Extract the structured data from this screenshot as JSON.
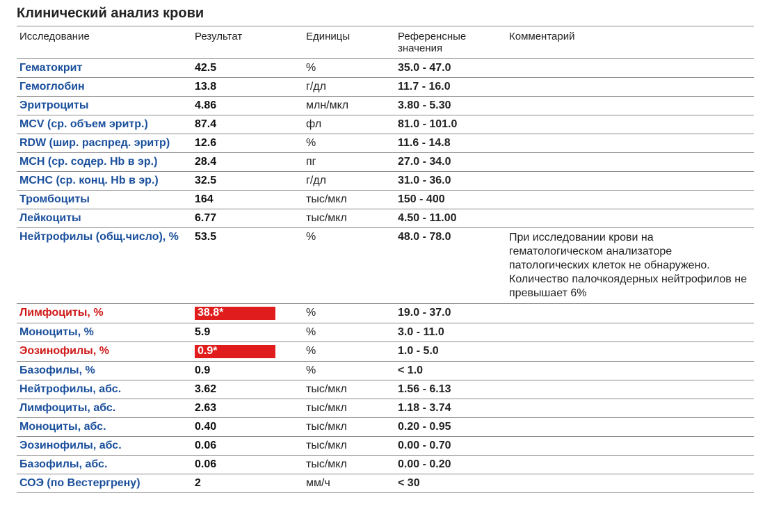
{
  "title": "Клинический анализ крови",
  "columns": [
    "Исследование",
    "Результат",
    "Единицы",
    "Референсные значения",
    "Комментарий"
  ],
  "rows": [
    {
      "name": "Гематокрит",
      "result": "42.5",
      "unit": "%",
      "ref": "35.0 - 47.0",
      "abnormal": false,
      "comment": ""
    },
    {
      "name": "Гемоглобин",
      "result": "13.8",
      "unit": "г/дл",
      "ref": "11.7 - 16.0",
      "abnormal": false,
      "comment": ""
    },
    {
      "name": "Эритроциты",
      "result": "4.86",
      "unit": "млн/мкл",
      "ref": "3.80 - 5.30",
      "abnormal": false,
      "comment": ""
    },
    {
      "name": "MCV (ср. объем эритр.)",
      "result": "87.4",
      "unit": "фл",
      "ref": "81.0 - 101.0",
      "abnormal": false,
      "comment": ""
    },
    {
      "name": "RDW (шир. распред. эритр)",
      "result": "12.6",
      "unit": "%",
      "ref": "11.6 - 14.8",
      "abnormal": false,
      "comment": ""
    },
    {
      "name": "MCH (ср. содер. Hb в эр.)",
      "result": "28.4",
      "unit": "пг",
      "ref": "27.0 - 34.0",
      "abnormal": false,
      "comment": ""
    },
    {
      "name": "MCHC (ср. конц. Hb в эр.)",
      "result": "32.5",
      "unit": "г/дл",
      "ref": "31.0 - 36.0",
      "abnormal": false,
      "comment": ""
    },
    {
      "name": "Тромбоциты",
      "result": "164",
      "unit": "тыс/мкл",
      "ref": "150 - 400",
      "abnormal": false,
      "comment": ""
    },
    {
      "name": "Лейкоциты",
      "result": "6.77",
      "unit": "тыс/мкл",
      "ref": "4.50 - 11.00",
      "abnormal": false,
      "comment": ""
    },
    {
      "name": "Нейтрофилы (общ.число), %",
      "result": "53.5",
      "unit": "%",
      "ref": "48.0 - 78.0",
      "abnormal": false,
      "comment": "При исследовании крови на гематологическом анализаторе патологических клеток не обнаружено. Количество палочкоядерных нейтрофилов не превышает 6%"
    },
    {
      "name": "Лимфоциты, %",
      "result": "38.8*",
      "unit": "%",
      "ref": "19.0 - 37.0",
      "abnormal": true,
      "comment": ""
    },
    {
      "name": "Моноциты, %",
      "result": "5.9",
      "unit": "%",
      "ref": "3.0 - 11.0",
      "abnormal": false,
      "comment": ""
    },
    {
      "name": "Эозинофилы, %",
      "result": "0.9*",
      "unit": "%",
      "ref": "1.0 - 5.0",
      "abnormal": true,
      "comment": ""
    },
    {
      "name": "Базофилы, %",
      "result": "0.9",
      "unit": "%",
      "ref": "< 1.0",
      "abnormal": false,
      "comment": ""
    },
    {
      "name": "Нейтрофилы, абс.",
      "result": "3.62",
      "unit": "тыс/мкл",
      "ref": "1.56 - 6.13",
      "abnormal": false,
      "comment": ""
    },
    {
      "name": "Лимфоциты, абс.",
      "result": "2.63",
      "unit": "тыс/мкл",
      "ref": "1.18 - 3.74",
      "abnormal": false,
      "comment": ""
    },
    {
      "name": "Моноциты, абс.",
      "result": "0.40",
      "unit": "тыс/мкл",
      "ref": "0.20 - 0.95",
      "abnormal": false,
      "comment": ""
    },
    {
      "name": "Эозинофилы, абс.",
      "result": "0.06",
      "unit": "тыс/мкл",
      "ref": "0.00 - 0.70",
      "abnormal": false,
      "comment": ""
    },
    {
      "name": "Базофилы, абс.",
      "result": "0.06",
      "unit": "тыс/мкл",
      "ref": "0.00 - 0.20",
      "abnormal": false,
      "comment": ""
    },
    {
      "name": "СОЭ (по Вестергрену)",
      "result": "2",
      "unit": "мм/ч",
      "ref": "< 30",
      "abnormal": false,
      "comment": ""
    }
  ],
  "style": {
    "name_color": "#1a4f9c",
    "name_abnormal_color": "#d01818",
    "flag_bg": "#e01c1c",
    "flag_fg": "#ffffff",
    "border_color": "#888888",
    "background": "#ffffff",
    "title_fontsize": 20,
    "body_fontsize": 16,
    "comment_fontsize": 13
  }
}
